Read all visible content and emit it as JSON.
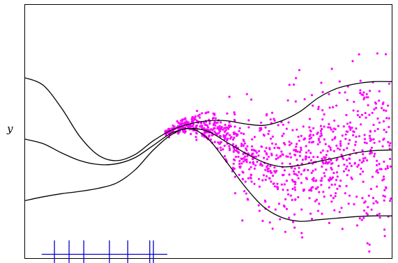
{
  "chart_data": {
    "type": "scatter",
    "ylabel": "y",
    "xlim": [
      0,
      1
    ],
    "ylim": [
      -1.55,
      1.75
    ],
    "grid": false,
    "legend": "none",
    "colors": {
      "points": "#ff00ff",
      "curves": "#000000",
      "inducing": "#0000cc",
      "frame": "#000000"
    },
    "scatter": {
      "n": 1000,
      "x_range": [
        0.38,
        1.0
      ],
      "mean_breakpoints": [
        [
          0.38,
          0.08
        ],
        [
          0.43,
          0.16
        ],
        [
          0.47,
          0.22
        ],
        [
          0.52,
          0.14
        ],
        [
          0.58,
          -0.1
        ],
        [
          0.63,
          -0.26
        ],
        [
          0.7,
          -0.34
        ],
        [
          0.8,
          -0.26
        ],
        [
          0.9,
          -0.16
        ],
        [
          1.0,
          -0.14
        ]
      ],
      "spread_breakpoints": [
        [
          0.38,
          0.02
        ],
        [
          0.45,
          0.06
        ],
        [
          0.52,
          0.12
        ],
        [
          0.6,
          0.25
        ],
        [
          0.7,
          0.34
        ],
        [
          0.8,
          0.42
        ],
        [
          0.9,
          0.5
        ],
        [
          1.0,
          0.54
        ]
      ]
    },
    "curves": [
      {
        "points": [
          [
            0.0,
            0.0
          ],
          [
            0.05,
            -0.06
          ],
          [
            0.1,
            -0.18
          ],
          [
            0.15,
            -0.28
          ],
          [
            0.2,
            -0.33
          ],
          [
            0.25,
            -0.32
          ],
          [
            0.3,
            -0.24
          ],
          [
            0.35,
            -0.08
          ],
          [
            0.4,
            0.08
          ],
          [
            0.45,
            0.14
          ],
          [
            0.5,
            0.1
          ],
          [
            0.55,
            -0.04
          ],
          [
            0.6,
            -0.18
          ],
          [
            0.65,
            -0.3
          ],
          [
            0.7,
            -0.36
          ],
          [
            0.75,
            -0.34
          ],
          [
            0.8,
            -0.29
          ],
          [
            0.85,
            -0.24
          ],
          [
            0.9,
            -0.18
          ],
          [
            0.95,
            -0.15
          ],
          [
            1.0,
            -0.14
          ]
        ]
      },
      {
        "points": [
          [
            0.0,
            0.8
          ],
          [
            0.05,
            0.7
          ],
          [
            0.1,
            0.4
          ],
          [
            0.15,
            0.03
          ],
          [
            0.2,
            -0.21
          ],
          [
            0.25,
            -0.28
          ],
          [
            0.3,
            -0.2
          ],
          [
            0.35,
            -0.02
          ],
          [
            0.4,
            0.12
          ],
          [
            0.45,
            0.2
          ],
          [
            0.5,
            0.24
          ],
          [
            0.55,
            0.24
          ],
          [
            0.6,
            0.2
          ],
          [
            0.65,
            0.18
          ],
          [
            0.7,
            0.24
          ],
          [
            0.75,
            0.36
          ],
          [
            0.8,
            0.54
          ],
          [
            0.85,
            0.66
          ],
          [
            0.9,
            0.72
          ],
          [
            0.95,
            0.75
          ],
          [
            1.0,
            0.75
          ]
        ]
      },
      {
        "points": [
          [
            0.0,
            -0.8
          ],
          [
            0.05,
            -0.75
          ],
          [
            0.1,
            -0.71
          ],
          [
            0.15,
            -0.68
          ],
          [
            0.2,
            -0.64
          ],
          [
            0.25,
            -0.57
          ],
          [
            0.3,
            -0.4
          ],
          [
            0.35,
            -0.14
          ],
          [
            0.4,
            0.06
          ],
          [
            0.45,
            0.14
          ],
          [
            0.5,
            0.0
          ],
          [
            0.55,
            -0.3
          ],
          [
            0.6,
            -0.62
          ],
          [
            0.65,
            -0.88
          ],
          [
            0.7,
            -1.02
          ],
          [
            0.75,
            -1.07
          ],
          [
            0.8,
            -1.05
          ],
          [
            0.85,
            -1.03
          ],
          [
            0.9,
            -1.01
          ],
          [
            0.95,
            -1.0
          ],
          [
            1.0,
            -1.0
          ]
        ]
      }
    ],
    "inducing_points": {
      "x": [
        0.08,
        0.12,
        0.16,
        0.23,
        0.28,
        0.34,
        0.35
      ],
      "y_level": -1.5
    }
  }
}
